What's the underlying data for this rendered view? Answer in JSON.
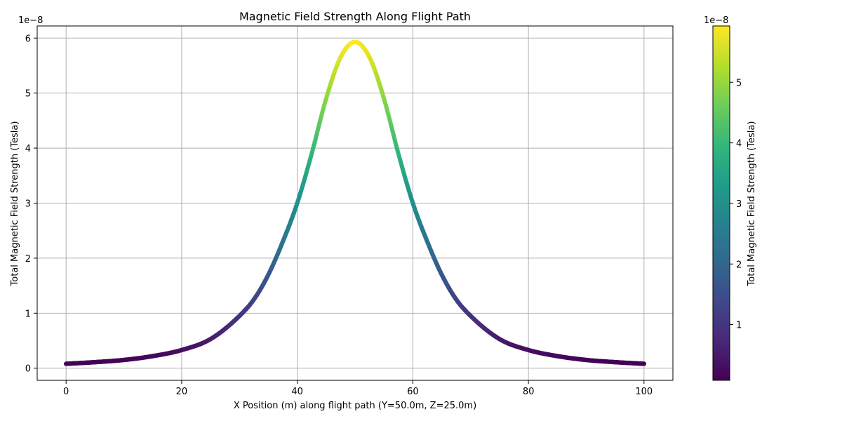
{
  "chart_data": {
    "type": "scatter",
    "title": "Magnetic Field Strength Along Flight Path",
    "xlabel": "X Position (m) along flight path (Y=50.0m, Z=25.0m)",
    "ylabel": "Total Magnetic Field Strength (Tesla)",
    "y_offset_label": "1e−8",
    "xlim": [
      -5,
      105
    ],
    "ylim": [
      -0.22,
      6.22
    ],
    "x_ticks": [
      0,
      20,
      40,
      60,
      80,
      100
    ],
    "y_ticks": [
      0,
      1,
      2,
      3,
      4,
      5,
      6
    ],
    "x_tick_labels": [
      "0",
      "20",
      "40",
      "60",
      "80",
      "100"
    ],
    "y_tick_labels": [
      "0",
      "1",
      "2",
      "3",
      "4",
      "5",
      "6"
    ],
    "grid": true,
    "y_scale_factor": 1e-08,
    "x": [
      0,
      5,
      10,
      15,
      20,
      25,
      30,
      32.5,
      35,
      37.5,
      40,
      42.5,
      45,
      47.5,
      50,
      52.5,
      55,
      57.5,
      60,
      62.5,
      65,
      67.5,
      70,
      75,
      80,
      85,
      90,
      95,
      100
    ],
    "y": [
      0.08,
      0.11,
      0.15,
      0.22,
      0.33,
      0.53,
      0.95,
      1.25,
      1.7,
      2.3,
      3.0,
      3.9,
      4.9,
      5.65,
      5.93,
      5.65,
      4.9,
      3.9,
      3.0,
      2.3,
      1.7,
      1.25,
      0.95,
      0.53,
      0.33,
      0.22,
      0.15,
      0.11,
      0.08
    ],
    "colormap": {
      "name": "viridis",
      "label": "Total Magnetic Field Strength (Tesla)",
      "range": [
        0.08,
        5.93
      ],
      "ticks": [
        1,
        2,
        3,
        4,
        5
      ],
      "tick_labels": [
        "1",
        "2",
        "3",
        "4",
        "5"
      ],
      "offset_label": "1e−8",
      "colors": [
        "#440154",
        "#482878",
        "#3e4989",
        "#31688e",
        "#26828e",
        "#1f9e89",
        "#35b779",
        "#6ece58",
        "#b5de2b",
        "#fde725"
      ]
    }
  }
}
